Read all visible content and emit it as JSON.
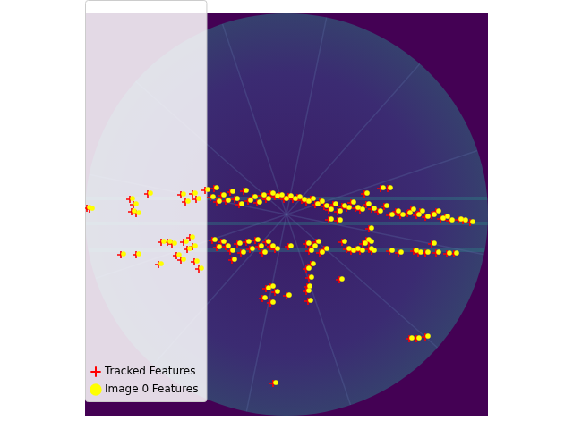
{
  "chart_data": {
    "type": "scatter",
    "xlim": [
      0,
      450
    ],
    "ylim": [
      450,
      0
    ],
    "grid": false,
    "tick_labels": false,
    "legend": "upper right",
    "series": [
      {
        "name": "Tracked Features",
        "color": "#ff0000",
        "marker": "plus",
        "values": [
          [
            2,
            218
          ],
          [
            5,
            219
          ],
          [
            50,
            208
          ],
          [
            54,
            214
          ],
          [
            52,
            222
          ],
          [
            57,
            224
          ],
          [
            70,
            202
          ],
          [
            107,
            203
          ],
          [
            112,
            211
          ],
          [
            120,
            202
          ],
          [
            124,
            208
          ],
          [
            134,
            198
          ],
          [
            140,
            206
          ],
          [
            144,
            196
          ],
          [
            147,
            211
          ],
          [
            152,
            204
          ],
          [
            157,
            210
          ],
          [
            162,
            200
          ],
          [
            167,
            208
          ],
          [
            172,
            214
          ],
          [
            177,
            199
          ],
          [
            182,
            210
          ],
          [
            187,
            206
          ],
          [
            192,
            212
          ],
          [
            197,
            204
          ],
          [
            202,
            208
          ],
          [
            207,
            202
          ],
          [
            212,
            205
          ],
          [
            217,
            204
          ],
          [
            222,
            208
          ],
          [
            227,
            205
          ],
          [
            232,
            208
          ],
          [
            237,
            206
          ],
          [
            242,
            209
          ],
          [
            247,
            211
          ],
          [
            252,
            208
          ],
          [
            257,
            214
          ],
          [
            262,
            211
          ],
          [
            267,
            216
          ],
          [
            272,
            220
          ],
          [
            277,
            214
          ],
          [
            282,
            222
          ],
          [
            287,
            216
          ],
          [
            292,
            218
          ],
          [
            297,
            212
          ],
          [
            302,
            218
          ],
          [
            307,
            220
          ],
          [
            312,
            202
          ],
          [
            314,
            214
          ],
          [
            320,
            219
          ],
          [
            327,
            222
          ],
          [
            330,
            196
          ],
          [
            334,
            216
          ],
          [
            338,
            196
          ],
          [
            340,
            226
          ],
          [
            347,
            222
          ],
          [
            352,
            226
          ],
          [
            360,
            224
          ],
          [
            364,
            220
          ],
          [
            370,
            226
          ],
          [
            374,
            222
          ],
          [
            380,
            228
          ],
          [
            387,
            226
          ],
          [
            392,
            222
          ],
          [
            397,
            230
          ],
          [
            402,
            228
          ],
          [
            407,
            232
          ],
          [
            417,
            231
          ],
          [
            422,
            232
          ],
          [
            430,
            234
          ],
          [
            40,
            270
          ],
          [
            57,
            270
          ],
          [
            82,
            281
          ],
          [
            85,
            256
          ],
          [
            92,
            256
          ],
          [
            97,
            258
          ],
          [
            102,
            271
          ],
          [
            107,
            276
          ],
          [
            110,
            256
          ],
          [
            114,
            264
          ],
          [
            117,
            251
          ],
          [
            120,
            261
          ],
          [
            122,
            278
          ],
          [
            127,
            286
          ],
          [
            142,
            254
          ],
          [
            147,
            262
          ],
          [
            152,
            256
          ],
          [
            157,
            261
          ],
          [
            162,
            266
          ],
          [
            164,
            276
          ],
          [
            170,
            258
          ],
          [
            174,
            268
          ],
          [
            180,
            256
          ],
          [
            184,
            264
          ],
          [
            190,
            254
          ],
          [
            194,
            261
          ],
          [
            198,
            268
          ],
          [
            202,
            256
          ],
          [
            207,
            261
          ],
          [
            212,
            264
          ],
          [
            227,
            261
          ],
          [
            247,
            258
          ],
          [
            250,
            266
          ],
          [
            254,
            261
          ],
          [
            258,
            256
          ],
          [
            262,
            268
          ],
          [
            267,
            264
          ],
          [
            287,
            256
          ],
          [
            292,
            264
          ],
          [
            297,
            266
          ],
          [
            302,
            264
          ],
          [
            307,
            266
          ],
          [
            310,
            258
          ],
          [
            314,
            254
          ],
          [
            317,
            264
          ],
          [
            320,
            266
          ],
          [
            340,
            266
          ],
          [
            350,
            268
          ],
          [
            367,
            266
          ],
          [
            372,
            268
          ],
          [
            380,
            268
          ],
          [
            387,
            258
          ],
          [
            392,
            268
          ],
          [
            404,
            269
          ],
          [
            412,
            269
          ],
          [
            247,
            286
          ],
          [
            250,
            296
          ],
          [
            252,
            281
          ],
          [
            248,
            306
          ],
          [
            247,
            311
          ],
          [
            249,
            322
          ],
          [
            202,
            308
          ],
          [
            207,
            306
          ],
          [
            212,
            312
          ],
          [
            198,
            319
          ],
          [
            207,
            324
          ],
          [
            225,
            316
          ],
          [
            284,
            298
          ],
          [
            362,
            364
          ],
          [
            370,
            364
          ],
          [
            380,
            362
          ],
          [
            210,
            414
          ],
          [
            282,
            232
          ],
          [
            317,
            241
          ],
          [
            317,
            256
          ],
          [
            272,
            231
          ]
        ]
      },
      {
        "name": "Image 0 Features",
        "color": "#ffff00",
        "marker": "circle",
        "values": [
          [
            5,
            217
          ],
          [
            8,
            218
          ],
          [
            53,
            207
          ],
          [
            57,
            213
          ],
          [
            55,
            221
          ],
          [
            60,
            223
          ],
          [
            73,
            201
          ],
          [
            110,
            202
          ],
          [
            115,
            210
          ],
          [
            123,
            201
          ],
          [
            127,
            207
          ],
          [
            137,
            197
          ],
          [
            143,
            205
          ],
          [
            147,
            195
          ],
          [
            150,
            210
          ],
          [
            155,
            203
          ],
          [
            160,
            209
          ],
          [
            165,
            199
          ],
          [
            170,
            207
          ],
          [
            175,
            213
          ],
          [
            180,
            198
          ],
          [
            185,
            209
          ],
          [
            190,
            205
          ],
          [
            195,
            211
          ],
          [
            200,
            203
          ],
          [
            205,
            207
          ],
          [
            210,
            201
          ],
          [
            215,
            204
          ],
          [
            220,
            203
          ],
          [
            225,
            207
          ],
          [
            230,
            204
          ],
          [
            235,
            207
          ],
          [
            240,
            205
          ],
          [
            245,
            208
          ],
          [
            250,
            210
          ],
          [
            255,
            207
          ],
          [
            260,
            213
          ],
          [
            265,
            210
          ],
          [
            270,
            215
          ],
          [
            275,
            219
          ],
          [
            280,
            213
          ],
          [
            285,
            221
          ],
          [
            290,
            215
          ],
          [
            295,
            217
          ],
          [
            300,
            211
          ],
          [
            305,
            217
          ],
          [
            310,
            219
          ],
          [
            315,
            201
          ],
          [
            317,
            213
          ],
          [
            323,
            218
          ],
          [
            330,
            221
          ],
          [
            333,
            195
          ],
          [
            337,
            215
          ],
          [
            341,
            195
          ],
          [
            343,
            225
          ],
          [
            350,
            221
          ],
          [
            355,
            225
          ],
          [
            363,
            223
          ],
          [
            367,
            219
          ],
          [
            373,
            225
          ],
          [
            377,
            221
          ],
          [
            383,
            227
          ],
          [
            390,
            225
          ],
          [
            395,
            221
          ],
          [
            400,
            229
          ],
          [
            405,
            227
          ],
          [
            410,
            231
          ],
          [
            420,
            230
          ],
          [
            425,
            231
          ],
          [
            433,
            233
          ],
          [
            43,
            269
          ],
          [
            60,
            269
          ],
          [
            85,
            280
          ],
          [
            88,
            255
          ],
          [
            95,
            255
          ],
          [
            100,
            257
          ],
          [
            105,
            270
          ],
          [
            110,
            275
          ],
          [
            113,
            255
          ],
          [
            117,
            263
          ],
          [
            120,
            250
          ],
          [
            123,
            260
          ],
          [
            125,
            277
          ],
          [
            130,
            285
          ],
          [
            145,
            253
          ],
          [
            150,
            261
          ],
          [
            155,
            255
          ],
          [
            160,
            260
          ],
          [
            165,
            265
          ],
          [
            167,
            275
          ],
          [
            173,
            257
          ],
          [
            177,
            267
          ],
          [
            183,
            255
          ],
          [
            187,
            263
          ],
          [
            193,
            253
          ],
          [
            197,
            260
          ],
          [
            201,
            267
          ],
          [
            205,
            255
          ],
          [
            210,
            260
          ],
          [
            215,
            263
          ],
          [
            230,
            260
          ],
          [
            250,
            257
          ],
          [
            253,
            265
          ],
          [
            257,
            260
          ],
          [
            261,
            255
          ],
          [
            265,
            267
          ],
          [
            270,
            263
          ],
          [
            290,
            255
          ],
          [
            295,
            263
          ],
          [
            300,
            265
          ],
          [
            305,
            263
          ],
          [
            310,
            265
          ],
          [
            313,
            257
          ],
          [
            317,
            253
          ],
          [
            320,
            263
          ],
          [
            323,
            265
          ],
          [
            343,
            265
          ],
          [
            353,
            267
          ],
          [
            370,
            265
          ],
          [
            375,
            267
          ],
          [
            383,
            267
          ],
          [
            390,
            257
          ],
          [
            395,
            267
          ],
          [
            407,
            268
          ],
          [
            415,
            268
          ],
          [
            250,
            285
          ],
          [
            253,
            295
          ],
          [
            255,
            280
          ],
          [
            251,
            305
          ],
          [
            250,
            310
          ],
          [
            252,
            321
          ],
          [
            205,
            307
          ],
          [
            210,
            305
          ],
          [
            215,
            311
          ],
          [
            201,
            318
          ],
          [
            210,
            323
          ],
          [
            228,
            315
          ],
          [
            287,
            297
          ],
          [
            365,
            363
          ],
          [
            373,
            363
          ],
          [
            383,
            361
          ],
          [
            213,
            413
          ],
          [
            285,
            231
          ],
          [
            320,
            240
          ],
          [
            320,
            255
          ],
          [
            275,
            230
          ]
        ]
      }
    ]
  }
}
